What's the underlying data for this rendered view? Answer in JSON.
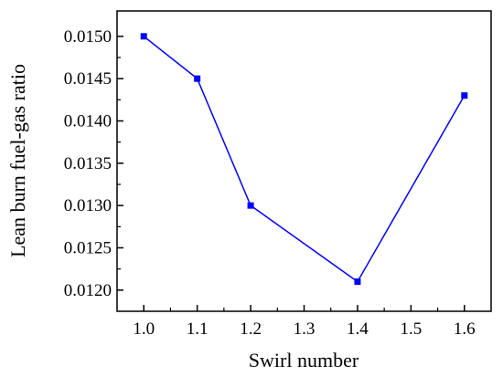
{
  "chart_data": {
    "type": "line",
    "title": "",
    "xlabel": "Swirl number",
    "ylabel": "Lean burn fuel-gas ratio",
    "xlim": [
      0.95,
      1.65
    ],
    "ylim": [
      0.01175,
      0.0153
    ],
    "xticks": [
      1.0,
      1.1,
      1.2,
      1.3,
      1.4,
      1.5,
      1.6
    ],
    "xtick_labels": [
      "1.0",
      "1.1",
      "1.2",
      "1.3",
      "1.4",
      "1.5",
      "1.6"
    ],
    "yticks": [
      0.012,
      0.0125,
      0.013,
      0.0135,
      0.014,
      0.0145,
      0.015
    ],
    "ytick_labels": [
      "0.0120",
      "0.0125",
      "0.0130",
      "0.0135",
      "0.0140",
      "0.0145",
      "0.0150"
    ],
    "grid": false,
    "series": [
      {
        "x": [
          1.0,
          1.1,
          1.2,
          1.4,
          1.6
        ],
        "y": [
          0.015,
          0.0145,
          0.013,
          0.0121,
          0.0143
        ],
        "color": "#0000ff",
        "marker": "square"
      }
    ]
  }
}
